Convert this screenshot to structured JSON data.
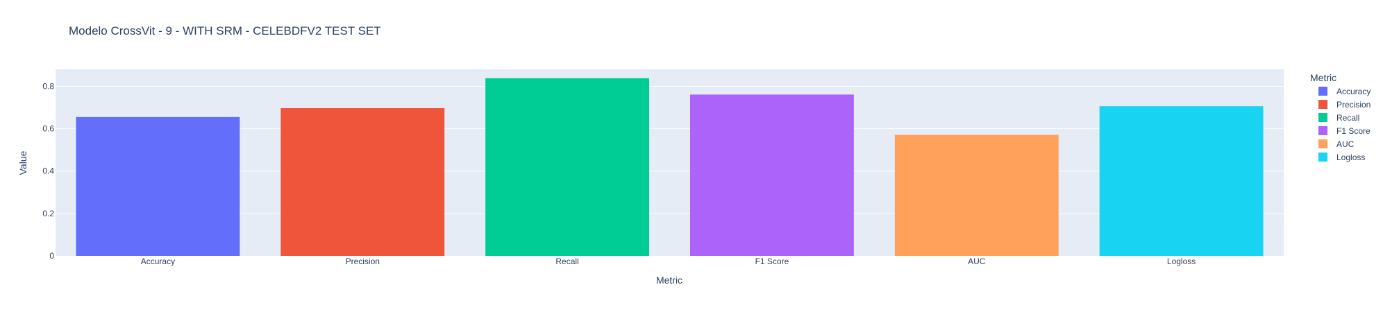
{
  "chart_data": {
    "type": "bar",
    "title": "Modelo CrossVit - 9 - WITH SRM - CELEBDFV2 TEST SET",
    "xlabel": "Metric",
    "ylabel": "Value",
    "categories": [
      "Accuracy",
      "Precision",
      "Recall",
      "F1 Score",
      "AUC",
      "Logloss"
    ],
    "values": [
      0.655,
      0.697,
      0.838,
      0.761,
      0.571,
      0.706
    ],
    "colors": [
      "#636efa",
      "#EF553B",
      "#00cc96",
      "#ab63fa",
      "#FFA15A",
      "#19d3f3"
    ],
    "ylim": [
      0,
      0.88
    ],
    "yticks": [
      0,
      0.2,
      0.4,
      0.6,
      0.8
    ],
    "ytick_labels": [
      "0",
      "0.2",
      "0.4",
      "0.6",
      "0.8"
    ],
    "grid": true,
    "legend": {
      "title": "Metric",
      "placement": "right",
      "items": [
        "Accuracy",
        "Precision",
        "Recall",
        "F1 Score",
        "AUC",
        "Logloss"
      ]
    },
    "plot_background": "#e5ecf6"
  }
}
